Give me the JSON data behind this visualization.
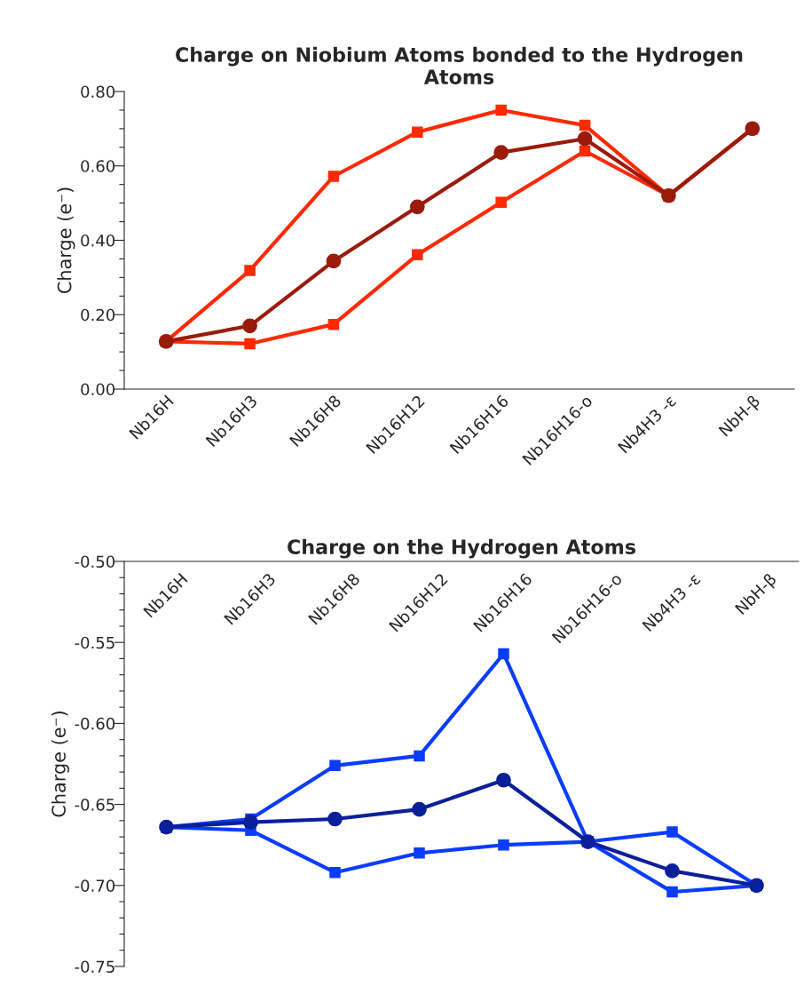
{
  "chart_data": [
    {
      "type": "line",
      "title": "Charge on Niobium Atoms bonded to the Hydrogen Atoms",
      "ylabel": "Charge (e⁻)",
      "categories": [
        "Nb16H",
        "Nb16H3",
        "Nb16H8",
        "Nb16H12",
        "Nb16H16",
        "Nb16H16-o",
        "Nb4H3 -ε",
        "NbH-β"
      ],
      "series": [
        {
          "color": "#ff2a00",
          "marker": "square",
          "values": [
            0.128,
            0.319,
            0.572,
            0.691,
            0.75,
            0.709,
            0.52,
            0.7
          ]
        },
        {
          "color": "#ff2a00",
          "marker": "square",
          "values": [
            0.128,
            0.122,
            0.174,
            0.361,
            0.502,
            0.64,
            0.52,
            0.7
          ]
        },
        {
          "color": "#9b1b0b",
          "marker": "circle",
          "values": [
            0.128,
            0.17,
            0.344,
            0.49,
            0.636,
            0.673,
            0.52,
            0.7
          ]
        }
      ],
      "ylim": [
        0,
        0.8
      ],
      "yticks": [
        {
          "value": 0,
          "label": "0.00"
        },
        {
          "value": 0.05,
          "label": null
        },
        {
          "value": 0.1,
          "label": null
        },
        {
          "value": 0.15,
          "label": null
        },
        {
          "value": 0.2,
          "label": "0.20"
        },
        {
          "value": 0.25,
          "label": null
        },
        {
          "value": 0.3,
          "label": null
        },
        {
          "value": 0.35,
          "label": null
        },
        {
          "value": 0.4,
          "label": "0.40"
        },
        {
          "value": 0.45,
          "label": null
        },
        {
          "value": 0.5,
          "label": null
        },
        {
          "value": 0.55,
          "label": null
        },
        {
          "value": 0.6,
          "label": "0.60"
        },
        {
          "value": 0.65,
          "label": null
        },
        {
          "value": 0.7,
          "label": null
        },
        {
          "value": 0.75,
          "label": null
        },
        {
          "value": 0.8,
          "label": "0.80"
        }
      ],
      "grid": false
    },
    {
      "type": "line",
      "title": "Charge on the Hydrogen Atoms",
      "ylabel": "Charge (e⁻)",
      "categories": [
        "Nb16H",
        "Nb16H3",
        "Nb16H8",
        "Nb16H12",
        "Nb16H16",
        "Nb16H16-o",
        "Nb4H3 -ε",
        "NbH-β"
      ],
      "series": [
        {
          "color": "#0a3cff",
          "marker": "square",
          "values": [
            -0.664,
            -0.659,
            -0.626,
            -0.62,
            -0.557,
            -0.673,
            -0.667,
            -0.7
          ]
        },
        {
          "color": "#0a3cff",
          "marker": "square",
          "values": [
            -0.664,
            -0.666,
            -0.692,
            -0.68,
            -0.675,
            -0.673,
            -0.704,
            -0.7
          ]
        },
        {
          "color": "#0a1f9a",
          "marker": "circle",
          "values": [
            -0.664,
            -0.661,
            -0.659,
            -0.653,
            -0.635,
            -0.673,
            -0.691,
            -0.7
          ]
        }
      ],
      "ylim": [
        -0.75,
        -0.5
      ],
      "yticks": [
        {
          "value": -0.75,
          "label": "-0.75"
        },
        {
          "value": -0.74,
          "label": null
        },
        {
          "value": -0.73,
          "label": null
        },
        {
          "value": -0.72,
          "label": null
        },
        {
          "value": -0.71,
          "label": null
        },
        {
          "value": -0.7,
          "label": "-0.70"
        },
        {
          "value": -0.69,
          "label": null
        },
        {
          "value": -0.68,
          "label": null
        },
        {
          "value": -0.67,
          "label": null
        },
        {
          "value": -0.66,
          "label": null
        },
        {
          "value": -0.65,
          "label": "-0.65"
        },
        {
          "value": -0.64,
          "label": null
        },
        {
          "value": -0.63,
          "label": null
        },
        {
          "value": -0.62,
          "label": null
        },
        {
          "value": -0.61,
          "label": null
        },
        {
          "value": -0.6,
          "label": "-0.60"
        },
        {
          "value": -0.59,
          "label": null
        },
        {
          "value": -0.58,
          "label": null
        },
        {
          "value": -0.57,
          "label": null
        },
        {
          "value": -0.56,
          "label": null
        },
        {
          "value": -0.55,
          "label": "-0.55"
        },
        {
          "value": -0.54,
          "label": null
        },
        {
          "value": -0.53,
          "label": null
        },
        {
          "value": -0.52,
          "label": null
        },
        {
          "value": -0.51,
          "label": null
        },
        {
          "value": -0.5,
          "label": "-0.50"
        }
      ],
      "grid": false
    }
  ]
}
